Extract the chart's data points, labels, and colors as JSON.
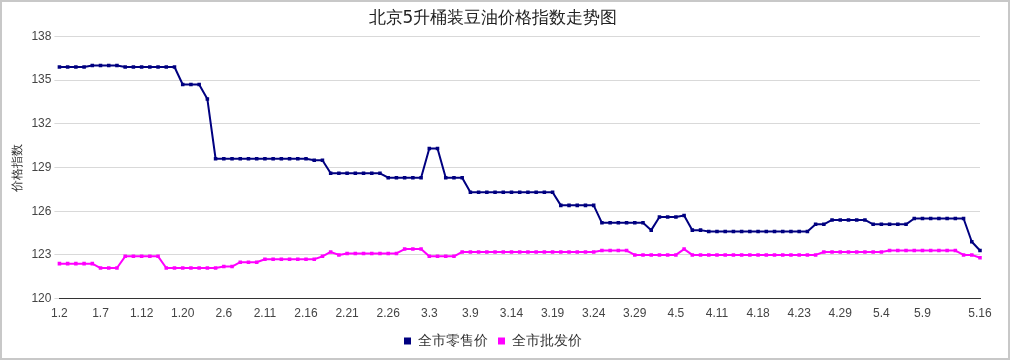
{
  "chart_data": {
    "type": "line",
    "title": "北京5升桶装豆油价格指数走势图",
    "ylabel": "价格指数",
    "categories": [
      "1.2",
      null,
      null,
      null,
      null,
      "1.7",
      null,
      null,
      null,
      null,
      "1.12",
      null,
      null,
      null,
      null,
      "1.20",
      null,
      null,
      null,
      null,
      "2.6",
      null,
      null,
      null,
      null,
      "2.11",
      null,
      null,
      null,
      null,
      "2.16",
      null,
      null,
      null,
      null,
      "2.21",
      null,
      null,
      null,
      null,
      "2.26",
      null,
      null,
      null,
      null,
      "3.3",
      null,
      null,
      null,
      null,
      "3.9",
      null,
      null,
      null,
      null,
      "3.14",
      null,
      null,
      null,
      null,
      "3.19",
      null,
      null,
      null,
      null,
      "3.24",
      null,
      null,
      null,
      null,
      "3.29",
      null,
      null,
      null,
      null,
      "4.5",
      null,
      null,
      null,
      null,
      "4.11",
      null,
      null,
      null,
      null,
      "4.18",
      null,
      null,
      null,
      null,
      "4.23",
      null,
      null,
      null,
      null,
      "4.29",
      null,
      null,
      null,
      null,
      "5.4",
      null,
      null,
      null,
      null,
      "5.9",
      null,
      null,
      null,
      null,
      null,
      null,
      "5.16"
    ],
    "series": [
      {
        "name": "全市零售价",
        "color": "#000080",
        "values": [
          135.9,
          135.9,
          135.9,
          135.9,
          136.0,
          136.0,
          136.0,
          136.0,
          135.9,
          135.9,
          135.9,
          135.9,
          135.9,
          135.9,
          135.9,
          134.7,
          134.7,
          134.7,
          133.7,
          129.6,
          129.6,
          129.6,
          129.6,
          129.6,
          129.6,
          129.6,
          129.6,
          129.6,
          129.6,
          129.6,
          129.6,
          129.5,
          129.5,
          128.6,
          128.6,
          128.6,
          128.6,
          128.6,
          128.6,
          128.6,
          128.3,
          128.3,
          128.3,
          128.3,
          128.3,
          130.3,
          130.3,
          128.3,
          128.3,
          128.3,
          127.3,
          127.3,
          127.3,
          127.3,
          127.3,
          127.3,
          127.3,
          127.3,
          127.3,
          127.3,
          127.3,
          126.4,
          126.4,
          126.4,
          126.4,
          126.4,
          125.2,
          125.2,
          125.2,
          125.2,
          125.2,
          125.2,
          124.7,
          125.6,
          125.6,
          125.6,
          125.7,
          124.7,
          124.7,
          124.6,
          124.6,
          124.6,
          124.6,
          124.6,
          124.6,
          124.6,
          124.6,
          124.6,
          124.6,
          124.6,
          124.6,
          124.6,
          125.1,
          125.1,
          125.4,
          125.4,
          125.4,
          125.4,
          125.4,
          125.1,
          125.1,
          125.1,
          125.1,
          125.1,
          125.5,
          125.5,
          125.5,
          125.5,
          125.5,
          125.5,
          125.5,
          123.9,
          123.3
        ]
      },
      {
        "name": "全市批发价",
        "color": "#ff00ff",
        "values": [
          122.4,
          122.4,
          122.4,
          122.4,
          122.4,
          122.1,
          122.1,
          122.1,
          122.9,
          122.9,
          122.9,
          122.9,
          122.9,
          122.1,
          122.1,
          122.1,
          122.1,
          122.1,
          122.1,
          122.1,
          122.2,
          122.2,
          122.5,
          122.5,
          122.5,
          122.7,
          122.7,
          122.7,
          122.7,
          122.7,
          122.7,
          122.7,
          122.9,
          123.2,
          123.0,
          123.1,
          123.1,
          123.1,
          123.1,
          123.1,
          123.1,
          123.1,
          123.4,
          123.4,
          123.4,
          122.9,
          122.9,
          122.9,
          122.9,
          123.2,
          123.2,
          123.2,
          123.2,
          123.2,
          123.2,
          123.2,
          123.2,
          123.2,
          123.2,
          123.2,
          123.2,
          123.2,
          123.2,
          123.2,
          123.2,
          123.2,
          123.3,
          123.3,
          123.3,
          123.3,
          123.0,
          123.0,
          123.0,
          123.0,
          123.0,
          123.0,
          123.4,
          123.0,
          123.0,
          123.0,
          123.0,
          123.0,
          123.0,
          123.0,
          123.0,
          123.0,
          123.0,
          123.0,
          123.0,
          123.0,
          123.0,
          123.0,
          123.0,
          123.2,
          123.2,
          123.2,
          123.2,
          123.2,
          123.2,
          123.2,
          123.2,
          123.3,
          123.3,
          123.3,
          123.3,
          123.3,
          123.3,
          123.3,
          123.3,
          123.3,
          123.0,
          123.0,
          122.8
        ]
      }
    ],
    "ylim": [
      120,
      138
    ],
    "yticks": [
      120,
      123,
      126,
      129,
      132,
      135,
      138
    ],
    "grid": "y",
    "legend": "bottom",
    "marker": "square",
    "line_style": "solid"
  }
}
